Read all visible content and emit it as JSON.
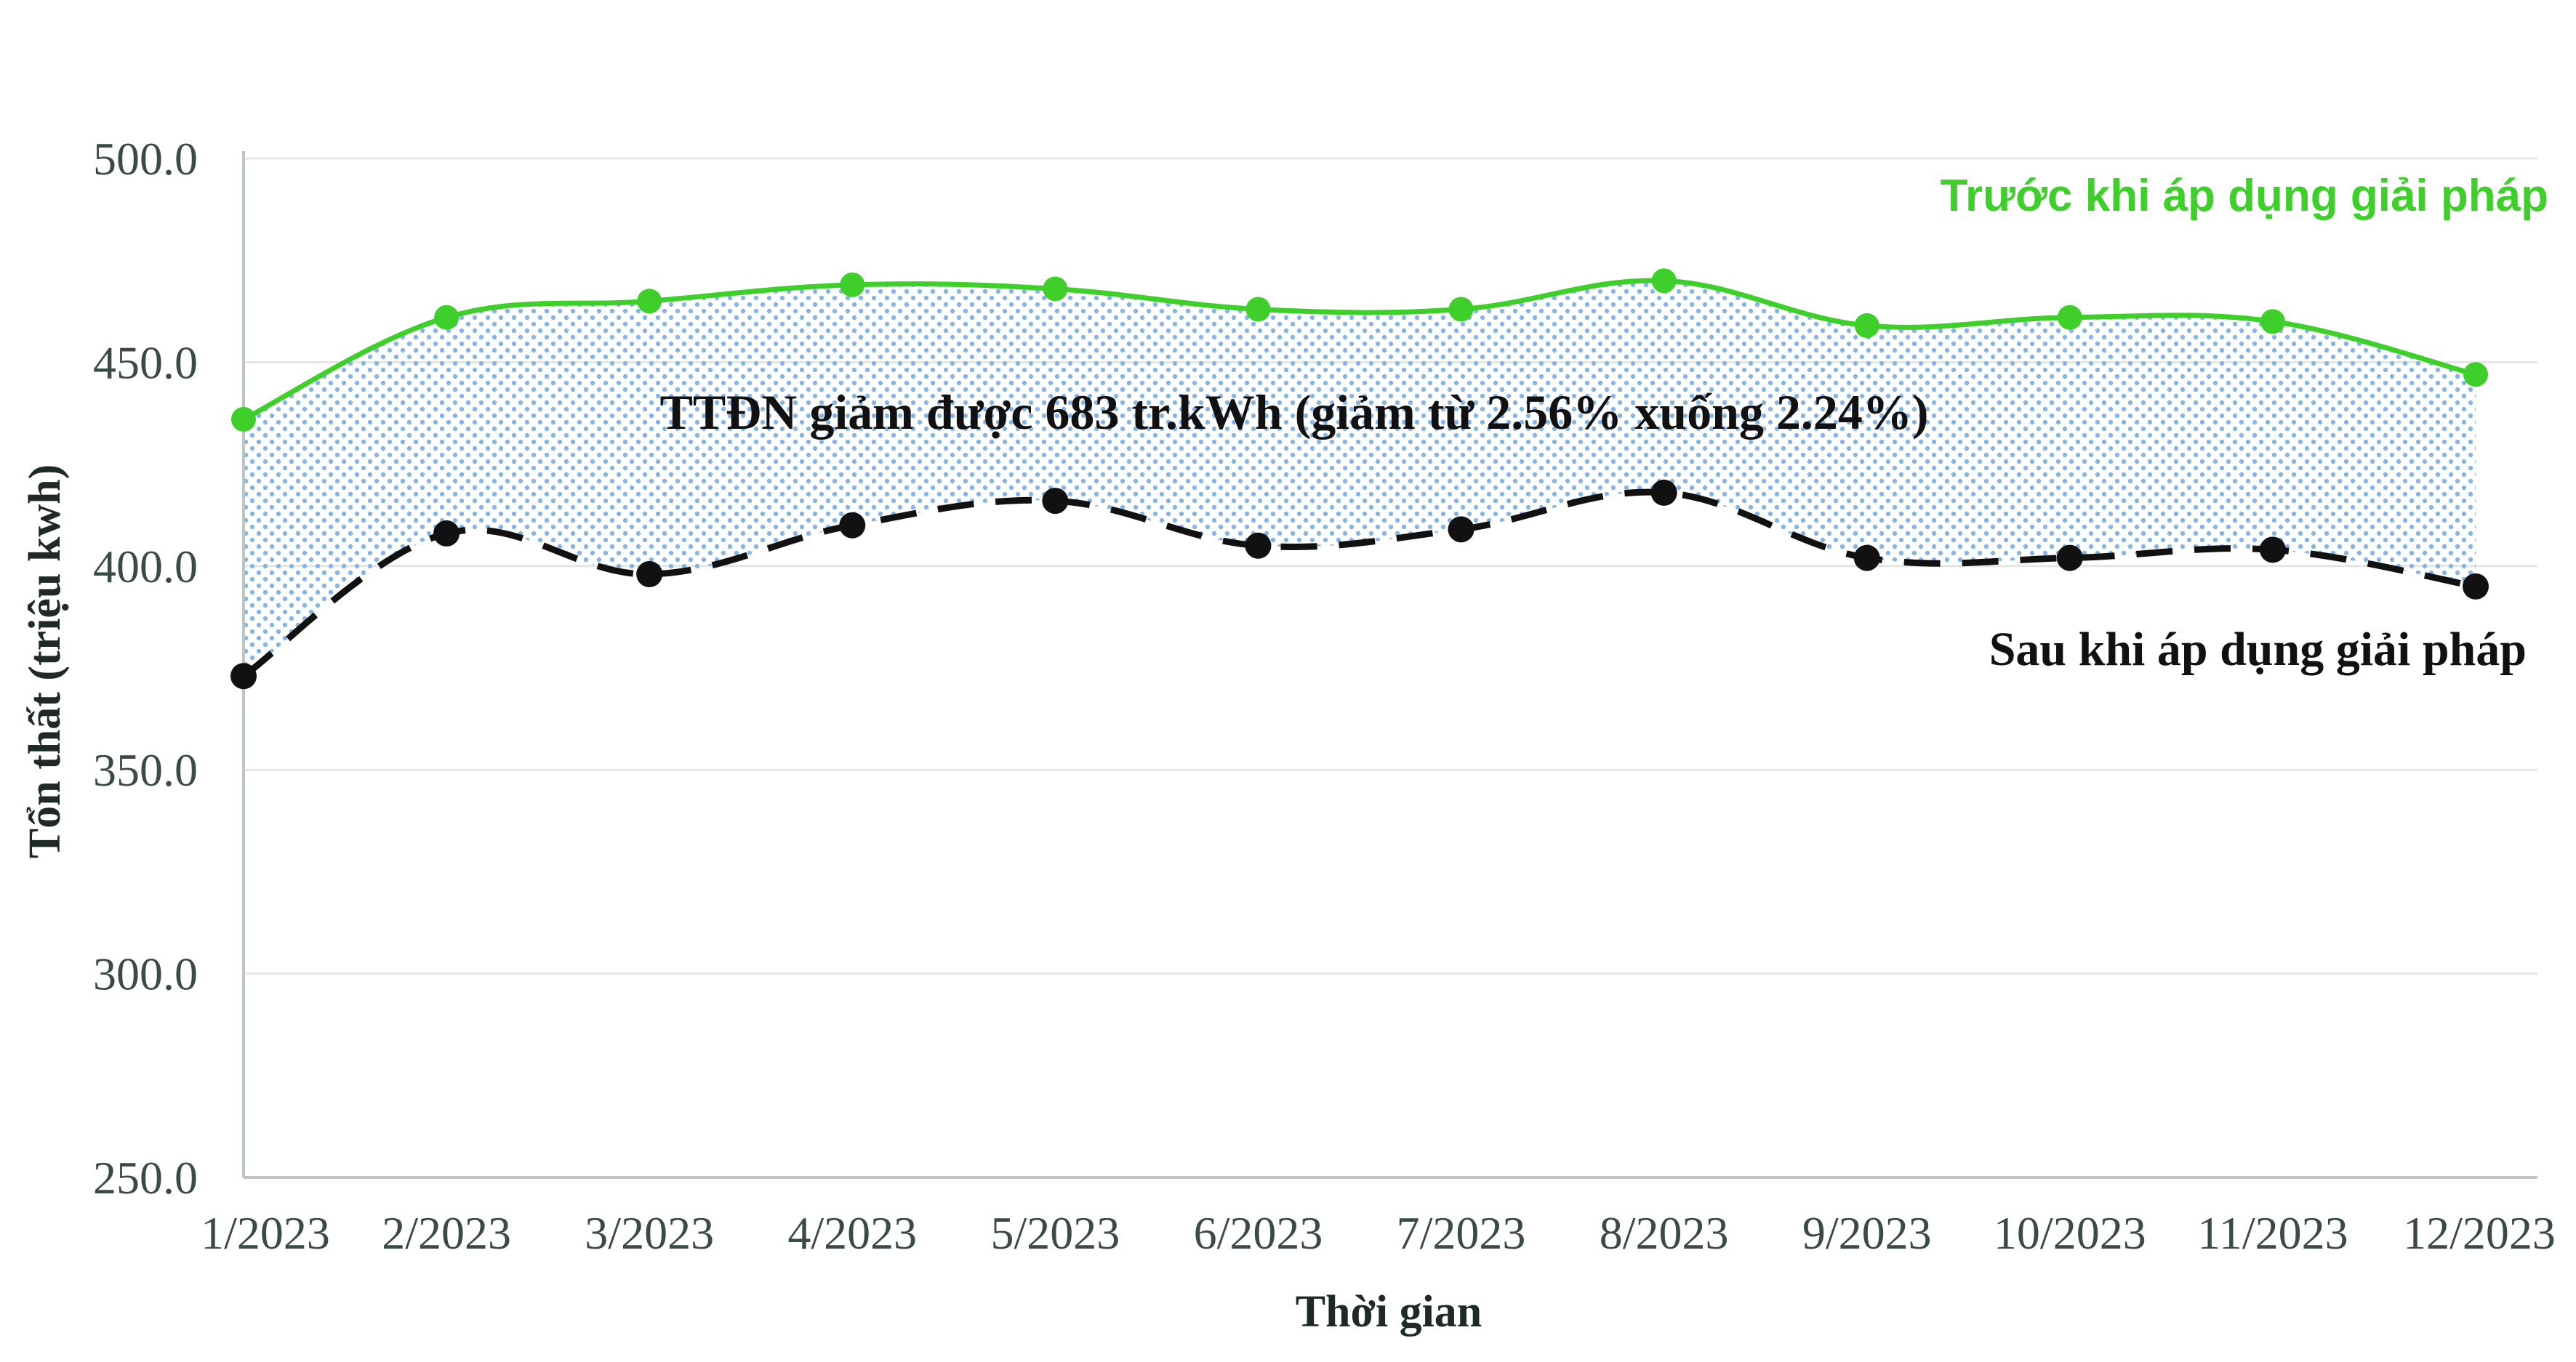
{
  "chart_data": {
    "type": "line",
    "xlabel": "Thời gian",
    "ylabel": "Tổn thất (triệu kwh)",
    "categories": [
      "1/2023",
      "2/2023",
      "3/2023",
      "4/2023",
      "5/2023",
      "6/2023",
      "7/2023",
      "8/2023",
      "9/2023",
      "10/2023",
      "11/2023",
      "12/2023"
    ],
    "yticks": [
      "250.0",
      "300.0",
      "350.0",
      "400.0",
      "450.0",
      "500.0"
    ],
    "ylim": [
      250,
      500
    ],
    "grid": "horizontal",
    "series": [
      {
        "name": "Trước khi áp dụng giải pháp",
        "values": [
          436,
          461,
          465,
          469,
          468,
          463,
          463,
          470,
          459,
          461,
          460,
          447
        ],
        "color": "#3fcf2a",
        "style": "solid"
      },
      {
        "name": "Sau khi áp dụng giải pháp",
        "values": [
          373,
          408,
          398,
          410,
          416,
          405,
          409,
          418,
          402,
          402,
          404,
          395
        ],
        "color": "#111111",
        "style": "dashed"
      }
    ],
    "annotation": "TTĐN giảm được 683 tr.kWh (giảm từ 2.56% xuống 2.24%)",
    "fill_between": {
      "color": "#7fb0e6",
      "pattern": "dotted"
    }
  }
}
